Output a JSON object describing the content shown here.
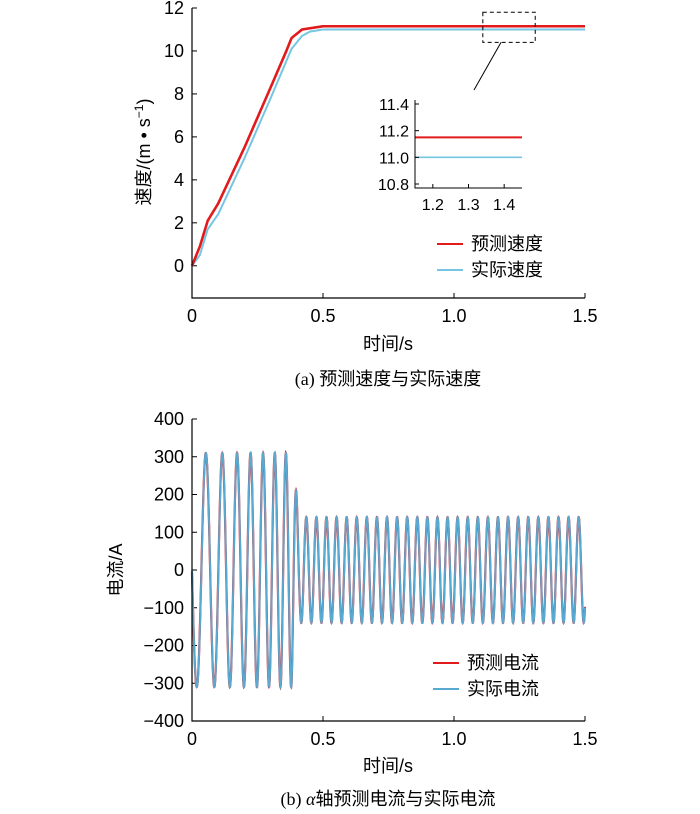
{
  "chart_data": [
    {
      "id": "a",
      "type": "line",
      "caption": "(a)  预测速度与实际速度",
      "xlabel": "时间/s",
      "ylabel": "速度/(m • s",
      "ylabel_sup": "−1",
      "ylabel_close": ")",
      "xlim": [
        0,
        1.5
      ],
      "ylim": [
        -1.5,
        12
      ],
      "xticks": [
        0,
        0.5,
        1.0,
        1.5
      ],
      "xtick_labels": [
        "0",
        "0.5",
        "1.0",
        "1.5"
      ],
      "yticks": [
        0,
        2,
        4,
        6,
        8,
        10,
        12
      ],
      "ytick_labels": [
        "0",
        "2",
        "4",
        "6",
        "8",
        "10",
        "12"
      ],
      "legend_position": "bottom-right",
      "series": [
        {
          "name": "预测速度",
          "color": "#e31a1c",
          "x": [
            0,
            0.03,
            0.06,
            0.1,
            0.2,
            0.3,
            0.36,
            0.38,
            0.42,
            0.5,
            0.7,
            1.0,
            1.2,
            1.5
          ],
          "y": [
            0,
            0.9,
            2.1,
            2.9,
            5.5,
            8.3,
            10.0,
            10.6,
            11.0,
            11.15,
            11.15,
            11.15,
            11.15,
            11.15
          ]
        },
        {
          "name": "实际速度",
          "color": "#74c6e3",
          "x": [
            0,
            0.03,
            0.06,
            0.1,
            0.2,
            0.3,
            0.38,
            0.42,
            0.45,
            0.5,
            0.7,
            1.0,
            1.2,
            1.5
          ],
          "y": [
            0,
            0.5,
            1.7,
            2.4,
            5.0,
            7.8,
            10.1,
            10.7,
            10.9,
            11.0,
            11.0,
            11.0,
            11.0,
            11.0
          ]
        }
      ],
      "inset": {
        "xlim": [
          1.15,
          1.45
        ],
        "ylim": [
          10.77,
          11.43
        ],
        "xticks": [
          1.2,
          1.3,
          1.4
        ],
        "xtick_labels": [
          "1.2",
          "1.3",
          "1.4"
        ],
        "yticks": [
          10.8,
          11.0,
          11.2,
          11.4
        ],
        "ytick_labels": [
          "10.8",
          "11.0",
          "11.2",
          "11.4"
        ],
        "source_box": {
          "x": [
            1.11,
            1.31
          ],
          "y": [
            10.4,
            11.8
          ]
        }
      }
    },
    {
      "id": "b",
      "type": "line",
      "caption_prefix": "(b)  ",
      "caption_alpha": "α",
      "caption_rest": "轴预测电流与实际电流",
      "xlabel": "时间/s",
      "ylabel": "电流/A",
      "xlim": [
        0,
        1.5
      ],
      "ylim": [
        -400,
        400
      ],
      "xticks": [
        0,
        0.5,
        1.0,
        1.5
      ],
      "xtick_labels": [
        "0",
        "0.5",
        "1.0",
        "1.5"
      ],
      "yticks": [
        -400,
        -300,
        -200,
        -100,
        0,
        100,
        200,
        300,
        400
      ],
      "ytick_labels": [
        "−400",
        "−300",
        "−200",
        "−100",
        "0",
        "100",
        "200",
        "300",
        "400"
      ],
      "legend_position": "bottom-right",
      "series": [
        {
          "name": "预测电流",
          "color": "#e31a1c"
        },
        {
          "name": "实际电流",
          "color": "#5aa9d0"
        }
      ],
      "waveform": {
        "phase1": {
          "t_end": 0.38,
          "amplitude": 310,
          "period_start": 0.075,
          "period_end": 0.04
        },
        "phase2": {
          "t_start": 0.38,
          "amplitude": 140,
          "period": 0.0385
        }
      }
    }
  ]
}
